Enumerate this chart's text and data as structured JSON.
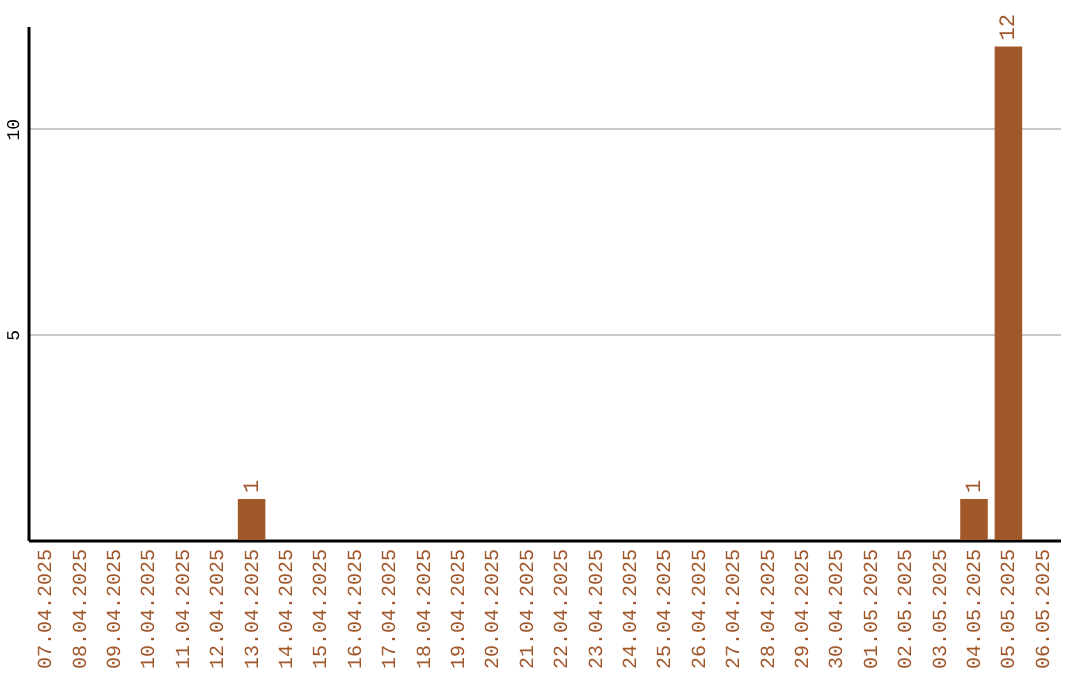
{
  "chart_data": {
    "type": "bar",
    "categories": [
      "07.04.2025",
      "08.04.2025",
      "09.04.2025",
      "10.04.2025",
      "11.04.2025",
      "12.04.2025",
      "13.04.2025",
      "14.04.2025",
      "15.04.2025",
      "16.04.2025",
      "17.04.2025",
      "18.04.2025",
      "19.04.2025",
      "20.04.2025",
      "21.04.2025",
      "22.04.2025",
      "23.04.2025",
      "24.04.2025",
      "25.04.2025",
      "26.04.2025",
      "27.04.2025",
      "28.04.2025",
      "29.04.2025",
      "30.04.2025",
      "01.05.2025",
      "02.05.2025",
      "03.05.2025",
      "04.05.2025",
      "05.05.2025",
      "06.05.2025"
    ],
    "values": [
      0,
      0,
      0,
      0,
      0,
      0,
      1,
      0,
      0,
      0,
      0,
      0,
      0,
      0,
      0,
      0,
      0,
      0,
      0,
      0,
      0,
      0,
      0,
      0,
      0,
      0,
      0,
      1,
      12,
      0
    ],
    "value_labels": [
      null,
      null,
      null,
      null,
      null,
      null,
      "1",
      null,
      null,
      null,
      null,
      null,
      null,
      null,
      null,
      null,
      null,
      null,
      null,
      null,
      null,
      null,
      null,
      null,
      null,
      null,
      null,
      "1",
      "12",
      null
    ],
    "color": "#a0572a",
    "ylim": [
      0,
      12.5
    ],
    "yticks": [
      5,
      10
    ],
    "grid": "y"
  }
}
